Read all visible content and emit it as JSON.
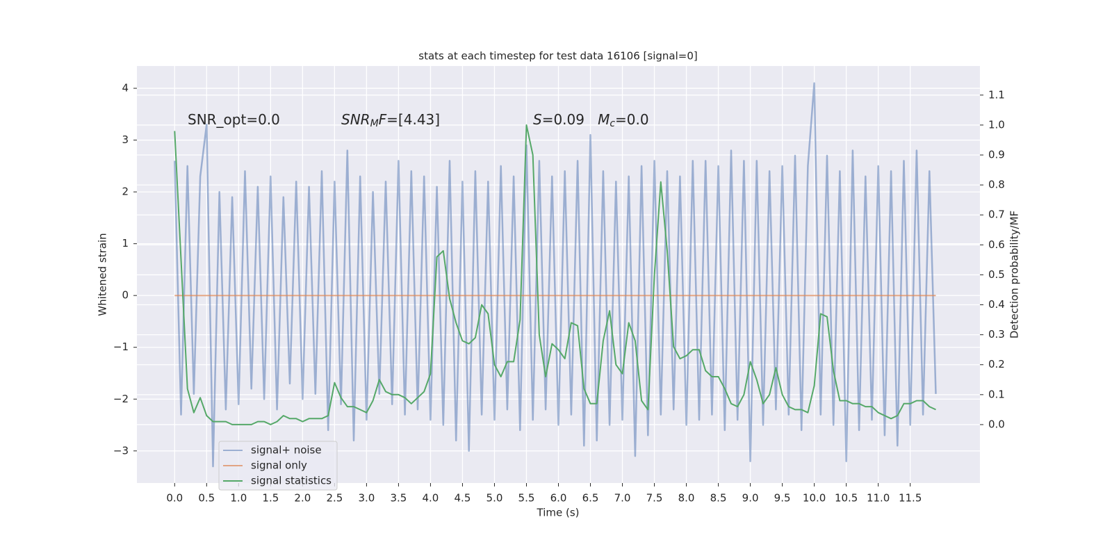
{
  "chart_data": {
    "type": "line",
    "title": "stats at each timestep for test data 16106 [signal=0]",
    "xlabel": "Time (s)",
    "ylabel": "Whitened strain",
    "y2label": "Detection probability/MF",
    "annotations": [
      [
        {
          "text": "SNR_opt=0.0"
        }
      ],
      [
        {
          "text": "SNR",
          "italic": true
        },
        {
          "text": "M",
          "italic": true,
          "sub": true
        },
        {
          "text": "F",
          "italic": true
        },
        {
          "text": "=[4.43]"
        }
      ],
      [
        {
          "text": "S",
          "italic": true
        },
        {
          "text": "=0.09   "
        },
        {
          "text": "M",
          "italic": true
        },
        {
          "text": "c",
          "italic": true,
          "sub": true
        },
        {
          "text": "=0.0"
        }
      ]
    ],
    "grid": true,
    "legend": "lower left",
    "xlim": [
      -0.59,
      12.59
    ],
    "ylim": [
      -3.62,
      4.43
    ],
    "y2lim": [
      -0.195,
      1.197
    ],
    "xticks": [
      {
        "value": 0,
        "label": "0.0"
      },
      0.5,
      {
        "value": 1,
        "label": "1.0"
      },
      1.5,
      {
        "value": 2,
        "label": "2.0"
      },
      2.5,
      {
        "value": 3,
        "label": "3.0"
      },
      3.5,
      {
        "value": 4,
        "label": "4.0"
      },
      4.5,
      {
        "value": 5,
        "label": "5.0"
      },
      5.5,
      {
        "value": 6,
        "label": "6.0"
      },
      6.5,
      {
        "value": 7,
        "label": "7.0"
      },
      7.5,
      {
        "value": 8,
        "label": "8.0"
      },
      8.5,
      {
        "value": 9,
        "label": "9.0"
      },
      9.5,
      {
        "value": 10,
        "label": "10.0"
      },
      10.5,
      {
        "value": 11,
        "label": "11.0"
      },
      11.5
    ],
    "yticks": [
      {
        "value": -3,
        "label": "−3"
      },
      {
        "value": -2,
        "label": "−2"
      },
      {
        "value": -1,
        "label": "−1"
      },
      0,
      1,
      2,
      3,
      4
    ],
    "y2ticks": [
      {
        "value": 0,
        "label": "0.0"
      },
      0.1,
      0.2,
      0.3,
      0.4,
      0.5,
      0.6,
      0.7,
      0.8,
      0.9,
      {
        "value": 1,
        "label": "1.0"
      },
      1.1
    ],
    "x": [
      0.0,
      0.1,
      0.2,
      0.3,
      0.4,
      0.5,
      0.6,
      0.7,
      0.8,
      0.9,
      1.0,
      1.1,
      1.2,
      1.3,
      1.4,
      1.5,
      1.6,
      1.7,
      1.8,
      1.9,
      2.0,
      2.1,
      2.2,
      2.3,
      2.4,
      2.5,
      2.6,
      2.7,
      2.8,
      2.9,
      3.0,
      3.1,
      3.2,
      3.3,
      3.4,
      3.5,
      3.6,
      3.7,
      3.8,
      3.9,
      4.0,
      4.1,
      4.2,
      4.3,
      4.4,
      4.5,
      4.6,
      4.7,
      4.8,
      4.9,
      5.0,
      5.1,
      5.2,
      5.3,
      5.4,
      5.5,
      5.6,
      5.7,
      5.8,
      5.9,
      6.0,
      6.1,
      6.2,
      6.3,
      6.4,
      6.5,
      6.6,
      6.7,
      6.8,
      6.9,
      7.0,
      7.1,
      7.2,
      7.3,
      7.4,
      7.5,
      7.6,
      7.7,
      7.8,
      7.9,
      8.0,
      8.1,
      8.2,
      8.3,
      8.4,
      8.5,
      8.6,
      8.7,
      8.8,
      8.9,
      9.0,
      9.1,
      9.2,
      9.3,
      9.4,
      9.5,
      9.6,
      9.7,
      9.8,
      9.9,
      10.0,
      10.1,
      10.2,
      10.3,
      10.4,
      10.5,
      10.6,
      10.7,
      10.8,
      10.9,
      11.0,
      11.1,
      11.2,
      11.3,
      11.4,
      11.5,
      11.6,
      11.7,
      11.8,
      11.9
    ],
    "series": [
      {
        "name": "signal+ noise",
        "color": "#4c72b0",
        "values": [
          2.6,
          -2.3,
          2.5,
          -1.9,
          2.3,
          3.3,
          -3.3,
          2.0,
          -2.2,
          1.9,
          -2.1,
          2.4,
          -1.8,
          2.1,
          -2.0,
          2.3,
          -2.2,
          1.9,
          -1.7,
          2.2,
          -2.0,
          2.1,
          -1.9,
          2.4,
          -2.6,
          2.2,
          -2.1,
          2.8,
          -2.8,
          2.3,
          -2.4,
          2.0,
          -1.9,
          2.2,
          -2.1,
          2.6,
          -2.3,
          2.4,
          -2.2,
          2.3,
          -2.4,
          2.1,
          -2.5,
          2.6,
          -2.8,
          2.2,
          -3.0,
          2.4,
          -2.3,
          2.2,
          -2.4,
          2.5,
          -2.2,
          2.3,
          -2.6,
          2.9,
          -2.4,
          2.6,
          -2.2,
          2.3,
          -2.5,
          2.4,
          -2.3,
          2.6,
          -2.9,
          3.1,
          -2.8,
          2.4,
          -2.5,
          2.2,
          -2.4,
          2.3,
          -3.1,
          2.5,
          -2.7,
          2.6,
          -2.3,
          2.4,
          -2.2,
          2.3,
          -2.5,
          2.6,
          -2.4,
          2.6,
          -2.3,
          2.5,
          -2.6,
          2.8,
          -2.4,
          2.6,
          -3.2,
          2.6,
          -2.5,
          2.4,
          -2.2,
          2.5,
          -2.3,
          2.7,
          -2.6,
          2.5,
          4.1,
          -2.3,
          2.7,
          -2.5,
          2.4,
          -3.2,
          2.8,
          -2.6,
          2.3,
          -2.4,
          2.5,
          -2.7,
          2.4,
          -2.9,
          2.6,
          -2.5,
          2.8,
          -2.3,
          2.4,
          -1.9
        ]
      },
      {
        "name": "signal only",
        "color": "#dd8452",
        "values": [
          0,
          0,
          0,
          0,
          0,
          0,
          0,
          0,
          0,
          0,
          0,
          0,
          0,
          0,
          0,
          0,
          0,
          0,
          0,
          0,
          0,
          0,
          0,
          0,
          0,
          0,
          0,
          0,
          0,
          0,
          0,
          0,
          0,
          0,
          0,
          0,
          0,
          0,
          0,
          0,
          0,
          0,
          0,
          0,
          0,
          0,
          0,
          0,
          0,
          0,
          0,
          0,
          0,
          0,
          0,
          0,
          0,
          0,
          0,
          0,
          0,
          0,
          0,
          0,
          0,
          0,
          0,
          0,
          0,
          0,
          0,
          0,
          0,
          0,
          0,
          0,
          0,
          0,
          0,
          0,
          0,
          0,
          0,
          0,
          0,
          0,
          0,
          0,
          0,
          0,
          0,
          0,
          0,
          0,
          0,
          0,
          0,
          0,
          0,
          0,
          0,
          0,
          0,
          0,
          0,
          0,
          0,
          0,
          0,
          0,
          0,
          0,
          0,
          0,
          0,
          0,
          0,
          0,
          0,
          0
        ]
      },
      {
        "name": "signal statistics",
        "color": "#55a868",
        "axis": "y2",
        "values": [
          0.98,
          0.55,
          0.12,
          0.04,
          0.09,
          0.03,
          0.01,
          0.01,
          0.01,
          0.0,
          0.0,
          0.0,
          0.0,
          0.01,
          0.01,
          0.0,
          0.01,
          0.03,
          0.02,
          0.02,
          0.01,
          0.02,
          0.02,
          0.02,
          0.03,
          0.14,
          0.09,
          0.06,
          0.06,
          0.05,
          0.04,
          0.08,
          0.15,
          0.11,
          0.1,
          0.1,
          0.09,
          0.07,
          0.09,
          0.11,
          0.17,
          0.56,
          0.58,
          0.42,
          0.34,
          0.28,
          0.27,
          0.29,
          0.4,
          0.37,
          0.2,
          0.16,
          0.21,
          0.21,
          0.35,
          1.0,
          0.9,
          0.3,
          0.16,
          0.27,
          0.25,
          0.22,
          0.34,
          0.33,
          0.12,
          0.07,
          0.07,
          0.28,
          0.38,
          0.2,
          0.17,
          0.34,
          0.28,
          0.08,
          0.05,
          0.5,
          0.81,
          0.58,
          0.26,
          0.22,
          0.23,
          0.25,
          0.25,
          0.18,
          0.16,
          0.16,
          0.12,
          0.07,
          0.06,
          0.1,
          0.21,
          0.15,
          0.07,
          0.1,
          0.19,
          0.1,
          0.06,
          0.05,
          0.05,
          0.04,
          0.13,
          0.37,
          0.36,
          0.18,
          0.08,
          0.08,
          0.07,
          0.07,
          0.06,
          0.06,
          0.04,
          0.03,
          0.02,
          0.03,
          0.07,
          0.07,
          0.08,
          0.08,
          0.06,
          0.05
        ]
      }
    ]
  }
}
